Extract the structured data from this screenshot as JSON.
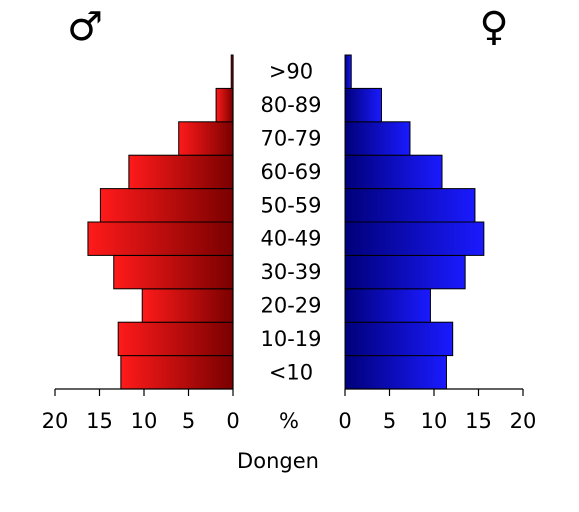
{
  "chart_data": {
    "type": "bar",
    "subtype": "population-pyramid",
    "categories": [
      "<10",
      "10-19",
      "20-29",
      "30-39",
      "40-49",
      "50-59",
      "60-69",
      "70-79",
      "80-89",
      ">90"
    ],
    "series": [
      {
        "symbol": "♂",
        "color": "#e60000",
        "values": [
          12.6,
          12.9,
          10.2,
          13.4,
          16.3,
          14.9,
          11.7,
          6.1,
          1.9,
          0.2
        ]
      },
      {
        "symbol": "♀",
        "color": "#0000d0",
        "values": [
          11.4,
          12.1,
          9.6,
          13.5,
          15.6,
          14.6,
          10.9,
          7.3,
          4.1,
          0.7
        ]
      }
    ],
    "xlim": [
      0,
      20
    ],
    "ticks": [
      0,
      5,
      10,
      15,
      20
    ],
    "axis_unit": "%",
    "xlabel": "Dongen"
  }
}
